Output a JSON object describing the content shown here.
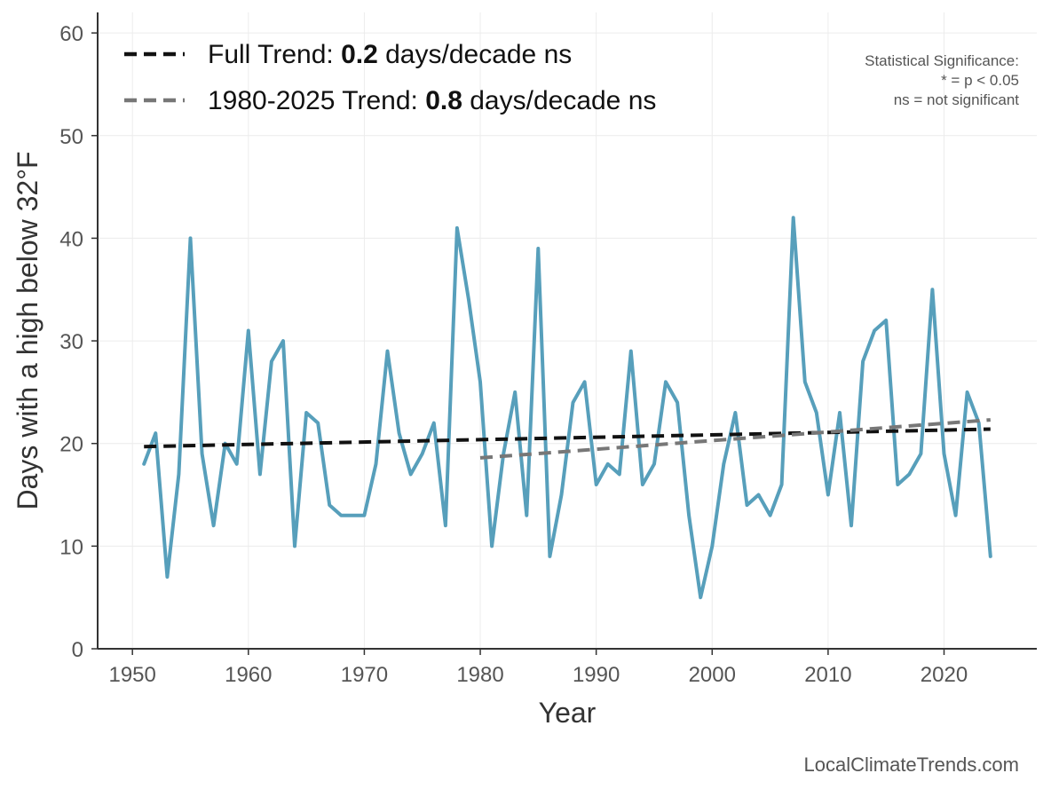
{
  "chart_data": {
    "type": "line",
    "xlabel": "Year",
    "ylabel": "Days with a high below 32°F",
    "xlim": [
      1947,
      2028
    ],
    "ylim": [
      0,
      62
    ],
    "xticks": [
      1950,
      1960,
      1970,
      1980,
      1990,
      2000,
      2010,
      2020
    ],
    "yticks": [
      0,
      10,
      20,
      30,
      40,
      50,
      60
    ],
    "grid": true,
    "legend_position": "top-left",
    "series": [
      {
        "color": "#579fbb",
        "x": [
          1951,
          1952,
          1953,
          1954,
          1955,
          1956,
          1957,
          1958,
          1959,
          1960,
          1961,
          1962,
          1963,
          1964,
          1965,
          1966,
          1967,
          1968,
          1969,
          1970,
          1971,
          1972,
          1973,
          1974,
          1975,
          1976,
          1977,
          1978,
          1979,
          1980,
          1981,
          1982,
          1983,
          1984,
          1985,
          1986,
          1987,
          1988,
          1989,
          1990,
          1991,
          1992,
          1993,
          1994,
          1995,
          1996,
          1997,
          1998,
          1999,
          2000,
          2001,
          2002,
          2003,
          2004,
          2005,
          2006,
          2007,
          2008,
          2009,
          2010,
          2011,
          2012,
          2013,
          2014,
          2015,
          2016,
          2017,
          2018,
          2019,
          2020,
          2021,
          2022,
          2023,
          2024
        ],
        "y": [
          18,
          21,
          7,
          17,
          40,
          19,
          12,
          20,
          18,
          31,
          17,
          28,
          30,
          10,
          23,
          22,
          14,
          13,
          13,
          13,
          18,
          29,
          21,
          17,
          19,
          22,
          12,
          41,
          34,
          26,
          10,
          19,
          25,
          13,
          39,
          9,
          15,
          24,
          26,
          16,
          18,
          17,
          29,
          16,
          18,
          26,
          24,
          13,
          5,
          10,
          18,
          23,
          14,
          15,
          13,
          16,
          42,
          26,
          23,
          15,
          23,
          12,
          28,
          31,
          32,
          16,
          17,
          19,
          35,
          19,
          13,
          25,
          22,
          9
        ]
      },
      {
        "name": "Full Trend",
        "color": "#111111",
        "dashed": true,
        "x": [
          1951,
          2024
        ],
        "y": [
          19.7,
          21.4
        ]
      },
      {
        "name": "1980-2025 Trend",
        "color": "#777777",
        "dashed": true,
        "x": [
          1980,
          2024
        ],
        "y": [
          18.6,
          22.3
        ]
      }
    ],
    "legend": [
      {
        "prefix": "Full Trend: ",
        "value": "0.2",
        "suffix": " days/decade ns",
        "color": "#111111"
      },
      {
        "prefix": "1980-2025 Trend: ",
        "value": "0.8",
        "suffix": " days/decade ns",
        "color": "#777777"
      }
    ],
    "annotation": [
      "Statistical Significance:",
      "* = p < 0.05",
      "ns = not significant"
    ],
    "credit": "LocalClimateTrends.com"
  }
}
